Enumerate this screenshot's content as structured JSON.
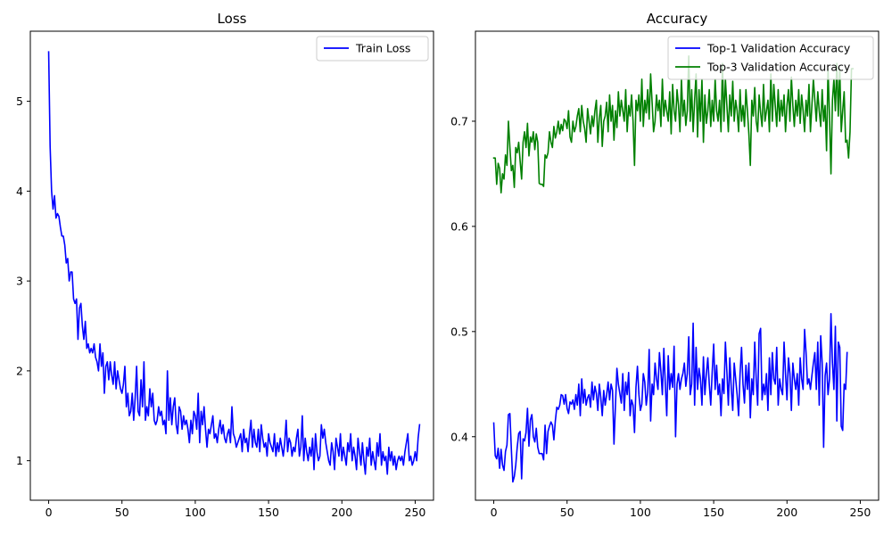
{
  "colors": {
    "train_loss": "#0000ff",
    "top1": "#0000ff",
    "top3": "#008000",
    "axes": "#000000",
    "legend_border": "#cccccc"
  },
  "chart_data": [
    {
      "type": "line",
      "title": "Loss",
      "xlabel": "",
      "ylabel": "",
      "xlim": [
        -12.5,
        262.5
      ],
      "ylim": [
        0.56,
        5.78
      ],
      "xticks": [
        0,
        50,
        100,
        150,
        200,
        250
      ],
      "yticks": [
        1,
        2,
        3,
        4,
        5
      ],
      "grid": false,
      "legend_position": "upper right",
      "series": [
        {
          "name": "Train Loss",
          "color": "#0000ff",
          "x_start": 0,
          "x_step": 1,
          "y": [
            5.55,
            4.5,
            4.0,
            3.8,
            3.95,
            3.7,
            3.75,
            3.72,
            3.6,
            3.5,
            3.5,
            3.4,
            3.2,
            3.25,
            3.0,
            3.1,
            3.1,
            2.8,
            2.75,
            2.8,
            2.35,
            2.7,
            2.75,
            2.5,
            2.35,
            2.55,
            2.25,
            2.3,
            2.2,
            2.25,
            2.2,
            2.3,
            2.15,
            2.1,
            2.0,
            2.3,
            2.05,
            2.2,
            1.75,
            2.05,
            2.1,
            1.9,
            2.1,
            1.95,
            1.85,
            2.1,
            1.8,
            2.0,
            1.9,
            1.8,
            1.75,
            1.85,
            2.05,
            1.6,
            1.75,
            1.5,
            1.55,
            1.75,
            1.45,
            1.7,
            2.05,
            1.55,
            1.5,
            1.9,
            1.6,
            2.1,
            1.45,
            1.6,
            1.5,
            1.8,
            1.6,
            1.75,
            1.45,
            1.4,
            1.45,
            1.6,
            1.5,
            1.55,
            1.4,
            1.45,
            1.3,
            2.0,
            1.45,
            1.7,
            1.4,
            1.6,
            1.7,
            1.4,
            1.3,
            1.6,
            1.55,
            1.35,
            1.5,
            1.4,
            1.45,
            1.35,
            1.2,
            1.45,
            1.3,
            1.55,
            1.5,
            1.35,
            1.75,
            1.2,
            1.55,
            1.4,
            1.6,
            1.35,
            1.15,
            1.35,
            1.3,
            1.4,
            1.5,
            1.25,
            1.3,
            1.2,
            1.35,
            1.45,
            1.3,
            1.4,
            1.25,
            1.2,
            1.3,
            1.35,
            1.2,
            1.6,
            1.3,
            1.25,
            1.15,
            1.2,
            1.25,
            1.3,
            1.1,
            1.35,
            1.2,
            1.25,
            1.1,
            1.3,
            1.45,
            1.15,
            1.35,
            1.2,
            1.15,
            1.35,
            1.1,
            1.4,
            1.25,
            1.15,
            1.2,
            1.05,
            1.3,
            1.2,
            1.15,
            1.1,
            1.3,
            1.05,
            1.2,
            1.1,
            1.25,
            1.15,
            1.05,
            1.2,
            1.45,
            1.1,
            1.25,
            1.2,
            1.05,
            1.15,
            1.1,
            1.25,
            1.35,
            1.05,
            1.15,
            1.5,
            1.0,
            1.25,
            1.1,
            1.0,
            1.15,
            1.05,
            1.25,
            0.9,
            1.3,
            1.1,
            1.0,
            1.05,
            1.4,
            1.25,
            1.35,
            1.2,
            1.1,
            1.0,
            0.95,
            1.2,
            1.1,
            0.9,
            1.25,
            1.15,
            1.05,
            1.3,
            1.0,
            1.15,
            1.05,
            0.95,
            1.2,
            1.1,
            1.3,
            1.0,
            1.15,
            1.05,
            0.9,
            1.25,
            1.1,
            0.95,
            1.2,
            1.0,
            0.85,
            1.15,
            1.05,
            1.25,
            0.95,
            1.1,
            1.0,
            0.9,
            1.2,
            1.05,
            1.3,
            0.95,
            1.1,
            1.0,
            1.05,
            0.85,
            1.15,
            1.0,
            1.1,
            0.95,
            1.05,
            0.9,
            1.0,
            1.05,
            1.0,
            1.05,
            0.95,
            1.1,
            1.2,
            1.3,
            1.0,
            1.05,
            0.95,
            1.0,
            1.1,
            1.0,
            1.25,
            1.4
          ]
        }
      ]
    },
    {
      "type": "line",
      "title": "Accuracy",
      "xlabel": "",
      "ylabel": "",
      "xlim": [
        -12.5,
        262.5
      ],
      "ylim": [
        0.3396,
        0.7856
      ],
      "xticks": [
        0,
        50,
        100,
        150,
        200,
        250
      ],
      "yticks": [
        0.4,
        0.5,
        0.6,
        0.7
      ],
      "grid": false,
      "legend_position": "upper right",
      "series": [
        {
          "name": "Top-1 Validation Accuracy",
          "color": "#0000ff",
          "x_start": 0,
          "x_step": 1,
          "y": [
            0.413,
            0.382,
            0.379,
            0.389,
            0.37,
            0.388,
            0.373,
            0.368,
            0.386,
            0.392,
            0.421,
            0.422,
            0.388,
            0.357,
            0.362,
            0.373,
            0.39,
            0.403,
            0.405,
            0.36,
            0.398,
            0.396,
            0.404,
            0.427,
            0.391,
            0.416,
            0.421,
            0.4,
            0.395,
            0.408,
            0.39,
            0.384,
            0.384,
            0.384,
            0.378,
            0.411,
            0.384,
            0.405,
            0.41,
            0.414,
            0.411,
            0.397,
            0.415,
            0.428,
            0.426,
            0.43,
            0.44,
            0.439,
            0.431,
            0.44,
            0.427,
            0.422,
            0.433,
            0.431,
            0.435,
            0.426,
            0.44,
            0.43,
            0.45,
            0.42,
            0.455,
            0.432,
            0.445,
            0.43,
            0.437,
            0.44,
            0.428,
            0.452,
            0.435,
            0.448,
            0.441,
            0.425,
            0.45,
            0.437,
            0.42,
            0.444,
            0.43,
            0.44,
            0.452,
            0.435,
            0.45,
            0.444,
            0.393,
            0.43,
            0.465,
            0.45,
            0.441,
            0.432,
            0.46,
            0.425,
            0.452,
            0.44,
            0.461,
            0.42,
            0.435,
            0.43,
            0.404,
            0.447,
            0.467,
            0.44,
            0.425,
            0.431,
            0.46,
            0.452,
            0.43,
            0.442,
            0.483,
            0.415,
            0.45,
            0.44,
            0.47,
            0.455,
            0.445,
            0.48,
            0.462,
            0.44,
            0.484,
            0.45,
            0.42,
            0.477,
            0.445,
            0.46,
            0.447,
            0.486,
            0.4,
            0.45,
            0.46,
            0.445,
            0.455,
            0.46,
            0.47,
            0.448,
            0.46,
            0.495,
            0.44,
            0.45,
            0.508,
            0.43,
            0.485,
            0.445,
            0.465,
            0.455,
            0.43,
            0.476,
            0.44,
            0.46,
            0.475,
            0.45,
            0.43,
            0.462,
            0.488,
            0.445,
            0.468,
            0.44,
            0.45,
            0.42,
            0.455,
            0.441,
            0.49,
            0.462,
            0.43,
            0.475,
            0.446,
            0.425,
            0.47,
            0.455,
            0.44,
            0.42,
            0.46,
            0.485,
            0.45,
            0.432,
            0.468,
            0.445,
            0.47,
            0.418,
            0.455,
            0.44,
            0.49,
            0.455,
            0.43,
            0.498,
            0.503,
            0.435,
            0.45,
            0.44,
            0.46,
            0.425,
            0.475,
            0.44,
            0.48,
            0.455,
            0.45,
            0.485,
            0.43,
            0.455,
            0.445,
            0.44,
            0.49,
            0.46,
            0.435,
            0.475,
            0.46,
            0.425,
            0.47,
            0.455,
            0.445,
            0.46,
            0.43,
            0.475,
            0.455,
            0.445,
            0.502,
            0.48,
            0.45,
            0.455,
            0.445,
            0.458,
            0.47,
            0.48,
            0.445,
            0.49,
            0.43,
            0.496,
            0.47,
            0.39,
            0.458,
            0.47,
            0.44,
            0.455,
            0.517,
            0.47,
            0.445,
            0.505,
            0.415,
            0.49,
            0.485,
            0.41,
            0.406,
            0.45,
            0.445,
            0.48
          ]
        },
        {
          "name": "Top-3 Validation Accuracy",
          "color": "#008000",
          "x_start": 0,
          "x_step": 1,
          "y": [
            0.665,
            0.665,
            0.64,
            0.66,
            0.655,
            0.632,
            0.65,
            0.645,
            0.668,
            0.658,
            0.7,
            0.675,
            0.653,
            0.658,
            0.637,
            0.675,
            0.67,
            0.68,
            0.662,
            0.645,
            0.68,
            0.69,
            0.675,
            0.698,
            0.667,
            0.685,
            0.68,
            0.69,
            0.673,
            0.688,
            0.68,
            0.641,
            0.64,
            0.64,
            0.638,
            0.668,
            0.665,
            0.67,
            0.69,
            0.68,
            0.675,
            0.695,
            0.684,
            0.69,
            0.7,
            0.688,
            0.697,
            0.691,
            0.702,
            0.7,
            0.693,
            0.71,
            0.685,
            0.68,
            0.7,
            0.69,
            0.695,
            0.705,
            0.712,
            0.69,
            0.715,
            0.7,
            0.693,
            0.68,
            0.712,
            0.7,
            0.688,
            0.705,
            0.695,
            0.71,
            0.72,
            0.68,
            0.703,
            0.715,
            0.676,
            0.7,
            0.705,
            0.718,
            0.69,
            0.725,
            0.7,
            0.715,
            0.682,
            0.71,
            0.694,
            0.728,
            0.705,
            0.72,
            0.71,
            0.7,
            0.73,
            0.69,
            0.715,
            0.705,
            0.725,
            0.7,
            0.658,
            0.72,
            0.71,
            0.725,
            0.7,
            0.74,
            0.695,
            0.72,
            0.708,
            0.73,
            0.702,
            0.745,
            0.718,
            0.69,
            0.7,
            0.725,
            0.71,
            0.72,
            0.695,
            0.74,
            0.705,
            0.72,
            0.71,
            0.7,
            0.728,
            0.688,
            0.735,
            0.71,
            0.7,
            0.73,
            0.715,
            0.69,
            0.74,
            0.705,
            0.72,
            0.696,
            0.71,
            0.762,
            0.7,
            0.73,
            0.69,
            0.72,
            0.745,
            0.685,
            0.73,
            0.7,
            0.74,
            0.68,
            0.725,
            0.698,
            0.71,
            0.73,
            0.695,
            0.72,
            0.7,
            0.74,
            0.71,
            0.7,
            0.72,
            0.69,
            0.755,
            0.7,
            0.74,
            0.715,
            0.69,
            0.725,
            0.705,
            0.738,
            0.7,
            0.72,
            0.71,
            0.69,
            0.73,
            0.7,
            0.715,
            0.695,
            0.73,
            0.71,
            0.688,
            0.658,
            0.72,
            0.705,
            0.732,
            0.7,
            0.69,
            0.725,
            0.708,
            0.695,
            0.735,
            0.7,
            0.71,
            0.72,
            0.69,
            0.745,
            0.7,
            0.735,
            0.715,
            0.695,
            0.73,
            0.7,
            0.72,
            0.705,
            0.725,
            0.69,
            0.715,
            0.73,
            0.7,
            0.742,
            0.715,
            0.695,
            0.72,
            0.705,
            0.73,
            0.698,
            0.725,
            0.71,
            0.69,
            0.72,
            0.705,
            0.735,
            0.69,
            0.715,
            0.74,
            0.72,
            0.7,
            0.728,
            0.71,
            0.695,
            0.73,
            0.7,
            0.715,
            0.672,
            0.75,
            0.705,
            0.65,
            0.72,
            0.74,
            0.71,
            0.755,
            0.705,
            0.75,
            0.69,
            0.71,
            0.728,
            0.68,
            0.682,
            0.665,
            0.69,
            0.75,
            0.75
          ]
        }
      ]
    }
  ]
}
